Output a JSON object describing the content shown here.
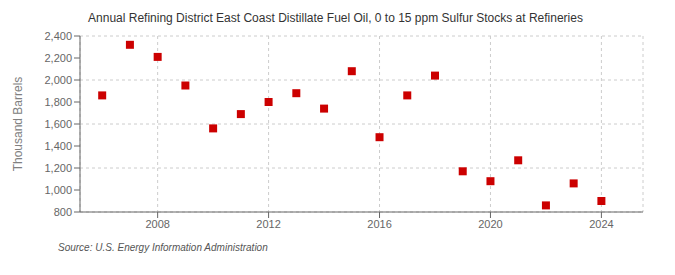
{
  "chart_data": {
    "type": "scatter",
    "title": "Annual Refining District East Coast Distillate Fuel Oil, 0 to 15 ppm Sulfur Stocks at Refineries",
    "ylabel": "Thousand Barrels",
    "source": "Source: U.S. Energy Information Administration",
    "x": [
      2006,
      2007,
      2008,
      2009,
      2010,
      2011,
      2012,
      2013,
      2014,
      2015,
      2016,
      2017,
      2018,
      2019,
      2020,
      2021,
      2022,
      2023,
      2024
    ],
    "values": [
      1860,
      2320,
      2210,
      1950,
      1560,
      1690,
      1800,
      1880,
      1740,
      2080,
      1480,
      1860,
      2040,
      1170,
      1080,
      1270,
      860,
      1060,
      900
    ],
    "color": "#cc0000",
    "marker": "square",
    "xlim": [
      2005.2,
      2025.5
    ],
    "xticks": [
      2008,
      2012,
      2016,
      2020,
      2024
    ],
    "ylim": [
      800,
      2400
    ],
    "yticks": [
      800,
      {
        "value": 1000,
        "label": "1,000"
      },
      {
        "value": 1200,
        "label": "1,200"
      },
      {
        "value": 1400,
        "label": "1,400"
      },
      {
        "value": 1600,
        "label": "1,600"
      },
      {
        "value": 1800,
        "label": "1,800"
      },
      {
        "value": 2000,
        "label": "2,000"
      },
      {
        "value": 2200,
        "label": "2,200"
      },
      {
        "value": 2400,
        "label": "2,400"
      }
    ],
    "grid": true
  }
}
